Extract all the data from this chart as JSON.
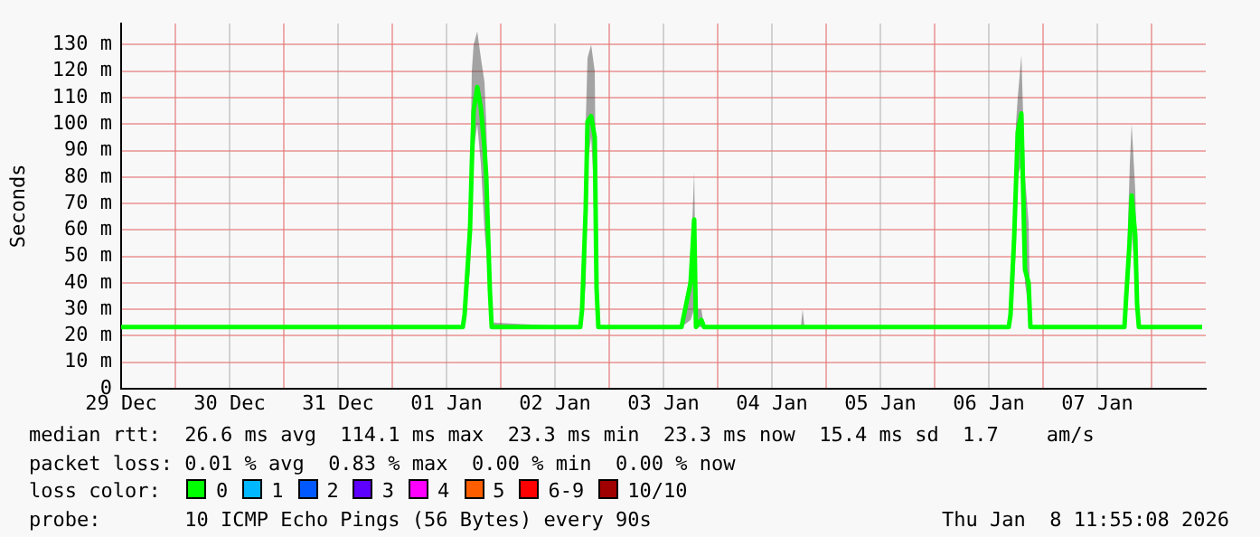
{
  "chart_data": {
    "type": "line",
    "ylabel": "Seconds",
    "legend_title": "loss color:",
    "legend": "bottom",
    "grid": true,
    "marker": "none",
    "x": [
      "2025-12-29T12:00",
      "2026-01-01T15:36",
      "2026-01-01T16:00",
      "2026-01-01T17:12",
      "2026-01-01T17:36",
      "2026-01-01T18:00",
      "2026-01-01T18:48",
      "2026-01-01T19:36",
      "2026-01-01T20:24",
      "2026-01-01T20:48",
      "2026-01-01T21:36",
      "2026-01-01T22:00",
      "2026-01-02T17:36",
      "2026-01-02T18:00",
      "2026-01-02T18:48",
      "2026-01-02T19:12",
      "2026-01-02T20:00",
      "2026-01-02T20:48",
      "2026-01-02T21:12",
      "2026-01-02T21:36",
      "2026-01-03T16:00",
      "2026-01-03T18:00",
      "2026-01-03T18:48",
      "2026-01-03T19:12",
      "2026-01-03T20:24",
      "2026-01-03T21:00",
      "2026-01-04T18:24",
      "2026-01-04T18:48",
      "2026-01-04T19:12",
      "2026-01-06T16:24",
      "2026-01-06T16:48",
      "2026-01-06T17:36",
      "2026-01-06T18:00",
      "2026-01-06T18:24",
      "2026-01-06T19:12",
      "2026-01-06T20:00",
      "2026-01-06T20:48",
      "2026-01-06T21:12",
      "2026-01-07T18:00",
      "2026-01-07T18:24",
      "2026-01-07T19:12",
      "2026-01-07T19:36",
      "2026-01-07T20:24",
      "2026-01-07T20:48",
      "2026-01-07T21:12",
      "2026-01-08T11:12"
    ],
    "series": [
      {
        "name": "0",
        "color": "#00ff00",
        "values": [
          23.3,
          23.3,
          28,
          60,
          85,
          105,
          114,
          106,
          91,
          80,
          37,
          23.3,
          23.3,
          30,
          68,
          101,
          103,
          95,
          38,
          23.3,
          23.3,
          40,
          64,
          23.3,
          26,
          23.3,
          23.3,
          23.3,
          23.3,
          23.3,
          28,
          57,
          77,
          97,
          104,
          45,
          40,
          23.3,
          23.3,
          35,
          57,
          73,
          58,
          32,
          23.3,
          23.3
        ],
        "lower": [
          23.3,
          23,
          24,
          45,
          75,
          90,
          100,
          85,
          60,
          52,
          30,
          23.3,
          23.3,
          24,
          40,
          85,
          95,
          70,
          30,
          23.3,
          23.3,
          26,
          30,
          23.3,
          23.3,
          23.3,
          23.3,
          23.3,
          23.3,
          23.3,
          24,
          40,
          55,
          80,
          85,
          40,
          30,
          23.3,
          23.3,
          25,
          45,
          60,
          40,
          25,
          23.3,
          23.3
        ],
        "upper": [
          23.3,
          23.3,
          35,
          75,
          120,
          130,
          135,
          125,
          116,
          100,
          45,
          25,
          23.3,
          30,
          100,
          125,
          130,
          120,
          50,
          23.3,
          23.3,
          45,
          82,
          30,
          30,
          23.3,
          23.3,
          30,
          23.3,
          23.3,
          30,
          70,
          100,
          110,
          126,
          80,
          63,
          23.3,
          23.3,
          40,
          85,
          100,
          75,
          45,
          23.3,
          23.3
        ]
      },
      {
        "name": "1",
        "color": "#00b8ff",
        "values": [
          null,
          null,
          null,
          null,
          null,
          null,
          null,
          null,
          null,
          null,
          null,
          null,
          null,
          null,
          null,
          null,
          null,
          null,
          null,
          null,
          null,
          null,
          null,
          null,
          null,
          null,
          null,
          null,
          null,
          null,
          null,
          null,
          null,
          null,
          null,
          null,
          null,
          null,
          null,
          null,
          null,
          null,
          null,
          null,
          null,
          null
        ]
      },
      {
        "name": "2",
        "color": "#0059ff",
        "values": [
          null,
          null,
          null,
          null,
          null,
          null,
          null,
          null,
          null,
          null,
          null,
          null,
          null,
          null,
          null,
          null,
          null,
          null,
          null,
          null,
          null,
          null,
          null,
          null,
          null,
          null,
          null,
          null,
          null,
          null,
          null,
          null,
          null,
          null,
          null,
          null,
          null,
          null,
          null,
          null,
          null,
          null,
          null,
          null,
          null,
          null
        ]
      },
      {
        "name": "3",
        "color": "#5e00ff",
        "values": [
          null,
          null,
          null,
          null,
          null,
          null,
          null,
          null,
          null,
          null,
          null,
          null,
          null,
          null,
          null,
          null,
          null,
          null,
          null,
          null,
          null,
          null,
          null,
          null,
          null,
          null,
          null,
          null,
          null,
          null,
          null,
          null,
          null,
          null,
          null,
          null,
          null,
          null,
          null,
          null,
          null,
          null,
          null,
          null,
          null,
          null
        ]
      },
      {
        "name": "4",
        "color": "#ff00ff",
        "values": [
          null,
          null,
          null,
          null,
          null,
          null,
          null,
          null,
          null,
          null,
          null,
          null,
          null,
          null,
          null,
          null,
          null,
          null,
          null,
          null,
          null,
          null,
          null,
          null,
          null,
          null,
          null,
          null,
          null,
          null,
          null,
          null,
          null,
          null,
          null,
          null,
          null,
          null,
          null,
          null,
          null,
          null,
          null,
          null,
          null,
          null
        ]
      },
      {
        "name": "5",
        "color": "#ff5e00",
        "values": [
          null,
          null,
          null,
          null,
          null,
          null,
          null,
          null,
          null,
          null,
          null,
          null,
          null,
          null,
          null,
          null,
          null,
          null,
          null,
          null,
          null,
          null,
          null,
          null,
          null,
          null,
          null,
          null,
          null,
          null,
          null,
          null,
          null,
          null,
          null,
          null,
          null,
          null,
          null,
          null,
          null,
          null,
          null,
          null,
          null,
          null
        ]
      },
      {
        "name": "6-9",
        "color": "#ff0000",
        "values": [
          null,
          null,
          null,
          null,
          null,
          null,
          null,
          null,
          null,
          null,
          null,
          null,
          null,
          null,
          null,
          null,
          null,
          null,
          null,
          null,
          null,
          null,
          null,
          null,
          null,
          null,
          null,
          null,
          null,
          null,
          null,
          null,
          null,
          null,
          null,
          null,
          null,
          null,
          null,
          null,
          null,
          null,
          null,
          null,
          null,
          null
        ]
      },
      {
        "name": "10/10",
        "color": "#a10000",
        "values": [
          null,
          null,
          null,
          null,
          null,
          null,
          null,
          null,
          null,
          null,
          null,
          null,
          null,
          null,
          null,
          null,
          null,
          null,
          null,
          null,
          null,
          null,
          null,
          null,
          null,
          null,
          null,
          null,
          null,
          null,
          null,
          null,
          null,
          null,
          null,
          null,
          null,
          null,
          null,
          null,
          null,
          null,
          null,
          null,
          null,
          null
        ]
      }
    ],
    "xlim": [
      "2025-12-29T12:00",
      "2026-01-08T12:00"
    ],
    "xticks": [
      {
        "value": "2025-12-29T12:00",
        "label": "29 Dec"
      },
      {
        "value": "2025-12-30",
        "label": null
      },
      {
        "value": "2025-12-30T12:00",
        "label": "30 Dec"
      },
      {
        "value": "2025-12-31",
        "label": null
      },
      {
        "value": "2025-12-31T12:00",
        "label": "31 Dec"
      },
      {
        "value": "2026-01-01",
        "label": null
      },
      {
        "value": "2026-01-01T12:00",
        "label": "01 Jan"
      },
      {
        "value": "2026-01-02",
        "label": null
      },
      {
        "value": "2026-01-02T12:00",
        "label": "02 Jan"
      },
      {
        "value": "2026-01-03",
        "label": null
      },
      {
        "value": "2026-01-03T12:00",
        "label": "03 Jan"
      },
      {
        "value": "2026-01-04",
        "label": null
      },
      {
        "value": "2026-01-04T12:00",
        "label": "04 Jan"
      },
      {
        "value": "2026-01-05",
        "label": null
      },
      {
        "value": "2026-01-05T12:00",
        "label": "05 Jan"
      },
      {
        "value": "2026-01-06",
        "label": null
      },
      {
        "value": "2026-01-06T12:00",
        "label": "06 Jan"
      },
      {
        "value": "2026-01-07",
        "label": null
      },
      {
        "value": "2026-01-07T12:00",
        "label": "07 Jan"
      },
      {
        "value": "2026-01-08",
        "label": null
      }
    ],
    "ylim": [
      0,
      138
    ],
    "yticks": [
      0,
      {
        "value": 10,
        "label": "10 m"
      },
      {
        "value": 20,
        "label": "20 m"
      },
      {
        "value": 30,
        "label": "30 m"
      },
      {
        "value": 40,
        "label": "40 m"
      },
      {
        "value": 50,
        "label": "50 m"
      },
      {
        "value": 60,
        "label": "60 m"
      },
      {
        "value": 70,
        "label": "70 m"
      },
      {
        "value": 80,
        "label": "80 m"
      },
      {
        "value": 90,
        "label": "90 m"
      },
      {
        "value": 100,
        "label": "100 m"
      },
      {
        "value": 110,
        "label": "110 m"
      },
      {
        "value": 120,
        "label": "120 m"
      },
      {
        "value": 130,
        "label": "130 m"
      }
    ],
    "annotations": [
      "median rtt:  26.6 ms avg  114.1 ms max  23.3 ms min  23.3 ms now  15.4 ms sd  1.7    am/s",
      "packet loss: 0.01 % avg  0.83 % max  0.00 % min  0.00 % now",
      "probe:       10 ICMP Echo Pings (56 Bytes) every 90s",
      "Thu Jan  8 11:55:08 2026"
    ]
  }
}
